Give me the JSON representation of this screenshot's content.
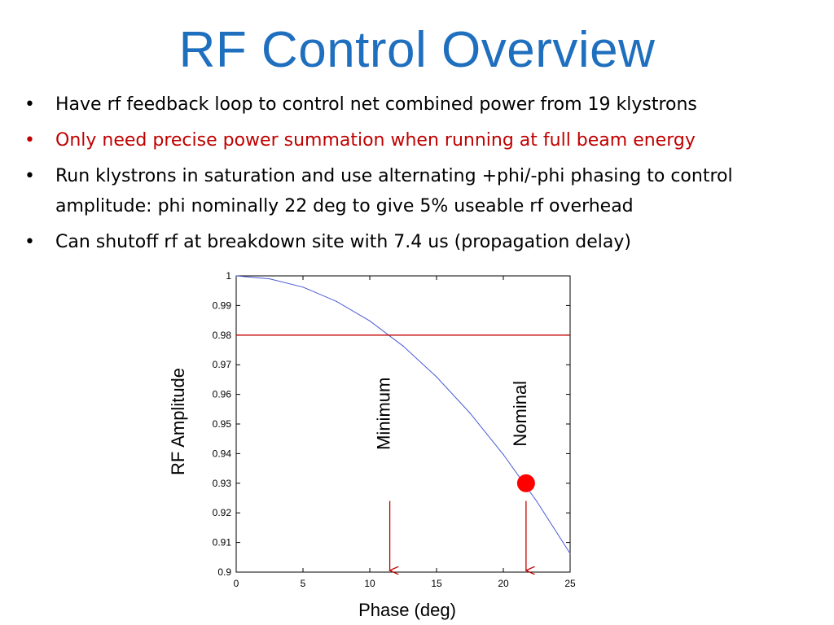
{
  "slide": {
    "title": "RF Control Overview",
    "bullets": [
      {
        "text": "Have rf feedback loop to control net combined power from 19 klystrons",
        "color": "#000000"
      },
      {
        "text": "Only need precise power summation when running at full beam energy",
        "color": "#c00000"
      },
      {
        "text": "Run klystrons in saturation and use alternating +phi/-phi phasing to control amplitude: phi nominally 22 deg to give 5% useable rf overhead",
        "color": "#000000"
      },
      {
        "text": "Can shutoff rf at breakdown site with 7.4 us (propagation delay)",
        "color": "#000000"
      }
    ],
    "bullet_symbol": "•"
  },
  "chart_data": {
    "type": "line",
    "title": "",
    "xlabel": "Phase (deg)",
    "ylabel": "RF Amplitude",
    "xlim": [
      0,
      25
    ],
    "ylim": [
      0.9,
      1.0
    ],
    "xticks": [
      0,
      5,
      10,
      15,
      20,
      25
    ],
    "xtick_labels": [
      "0",
      "5",
      "10",
      "15",
      "20",
      "25"
    ],
    "yticks": [
      0.9,
      0.91,
      0.92,
      0.93,
      0.94,
      0.95,
      0.96,
      0.97,
      0.98,
      0.99,
      1.0
    ],
    "ytick_labels": [
      "0.9",
      "0.91",
      "0.92",
      "0.93",
      "0.94",
      "0.95",
      "0.96",
      "0.97",
      "0.98",
      "0.99",
      "1"
    ],
    "grid": false,
    "series": [
      {
        "name": "",
        "kind": "line",
        "color": "#4a5bd6",
        "x": [
          0,
          2.5,
          5,
          7.5,
          10,
          12.5,
          15,
          17.5,
          20,
          22.5,
          25
        ],
        "y": [
          1.0,
          0.999,
          0.9962,
          0.9914,
          0.9848,
          0.9763,
          0.9659,
          0.9537,
          0.9397,
          0.9239,
          0.9063
        ]
      },
      {
        "name": "",
        "kind": "hline",
        "color": "#c00000",
        "x": [
          0,
          25
        ],
        "y": [
          0.98,
          0.98
        ]
      }
    ],
    "annotations": [
      {
        "text": "Minimum",
        "x": 11.5,
        "y": 0.9535,
        "rotation": -90,
        "arrow_from_y": 0.924,
        "arrow_to_y": 0.9,
        "arrow_color": "#c00000"
      },
      {
        "text": "Nominal",
        "x": 21.7,
        "y": 0.9535,
        "rotation": -90,
        "arrow_from_y": 0.924,
        "arrow_to_y": 0.9,
        "arrow_color": "#c00000"
      }
    ],
    "markers": [
      {
        "x": 21.7,
        "y": 0.93,
        "color": "#ff0000",
        "shape": "circle"
      }
    ]
  }
}
